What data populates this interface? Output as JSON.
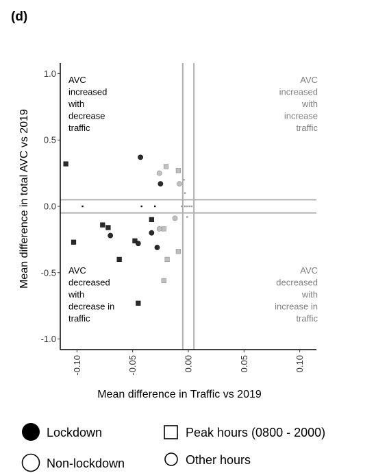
{
  "panel_label": "(d)",
  "legend": {
    "lockdown": "Lockdown",
    "non_lockdown": "Non-lockdown",
    "peak_hours": "Peak hours (0800 - 2000)",
    "other_hours": "Other hours"
  },
  "quadrants": {
    "top_left": [
      "AVC",
      "increased",
      "with",
      "decrease",
      "traffic"
    ],
    "top_right": [
      "AVC",
      "increased",
      "with",
      "increase",
      "traffic"
    ],
    "bottom_left": [
      "AVC",
      "decreased",
      "with",
      "decrease in",
      "traffic"
    ],
    "bottom_right": [
      "AVC",
      "decreased",
      "with",
      "increase in",
      "traffic"
    ]
  },
  "colors": {
    "lockdown": "#2b2b2b",
    "non_lockdown": "#bfbfbf",
    "reference_lines": "#b0b0b0",
    "dark_text": "#000000",
    "grey_text": "#808080"
  },
  "chart_data": {
    "type": "scatter",
    "xlabel": "Mean difference in Traffic vs 2019",
    "ylabel": "Mean difference in total AVC vs 2019",
    "xlim": [
      -0.115,
      0.115
    ],
    "ylim": [
      -1.08,
      1.08
    ],
    "x_ticks": [
      "-0.10",
      "-0.05",
      "0.00",
      "0.05",
      "0.10"
    ],
    "x_tick_values": [
      -0.1,
      -0.05,
      0.0,
      0.05,
      0.1
    ],
    "y_ticks": [
      "1.0",
      "0.5",
      "0.0",
      "-0.5",
      "-1.0"
    ],
    "y_tick_values": [
      1.0,
      0.5,
      0.0,
      -0.5,
      -1.0
    ],
    "reference_lines": {
      "x": [
        -0.005,
        0.005
      ],
      "y": [
        0.05,
        -0.05
      ]
    },
    "series": [
      {
        "name": "Lockdown",
        "marker": "square",
        "points": [
          [
            -0.11,
            0.32
          ],
          [
            -0.103,
            -0.27
          ],
          [
            -0.077,
            -0.14
          ],
          [
            -0.072,
            -0.16
          ],
          [
            -0.062,
            -0.4
          ],
          [
            -0.048,
            -0.26
          ],
          [
            -0.045,
            -0.73
          ],
          [
            -0.033,
            -0.1
          ]
        ]
      },
      {
        "name": "Lockdown",
        "marker": "circle",
        "points": [
          [
            -0.043,
            0.37
          ],
          [
            -0.025,
            0.17
          ],
          [
            -0.07,
            -0.22
          ],
          [
            -0.045,
            -0.28
          ],
          [
            -0.033,
            -0.2
          ],
          [
            -0.028,
            -0.31
          ]
        ]
      },
      {
        "name": "Lockdown",
        "marker": "dot",
        "points": [
          [
            -0.095,
            0.0
          ],
          [
            -0.042,
            0.0
          ],
          [
            -0.03,
            0.0
          ]
        ]
      },
      {
        "name": "Non-lockdown",
        "marker": "square",
        "points": [
          [
            -0.02,
            0.3
          ],
          [
            -0.009,
            0.27
          ],
          [
            -0.022,
            -0.17
          ],
          [
            -0.009,
            -0.34
          ],
          [
            -0.019,
            -0.4
          ],
          [
            -0.022,
            -0.56
          ]
        ]
      },
      {
        "name": "Non-lockdown",
        "marker": "circle",
        "points": [
          [
            -0.026,
            0.25
          ],
          [
            -0.008,
            0.17
          ],
          [
            -0.012,
            -0.09
          ],
          [
            -0.026,
            -0.17
          ]
        ]
      },
      {
        "name": "Non-lockdown",
        "marker": "dot",
        "points": [
          [
            -0.004,
            0.2
          ],
          [
            -0.003,
            0.1
          ],
          [
            -0.006,
            0.0
          ],
          [
            -0.003,
            0.0
          ],
          [
            -0.001,
            0.0
          ],
          [
            0.001,
            0.0
          ],
          [
            0.003,
            0.0
          ],
          [
            -0.001,
            -0.08
          ]
        ]
      }
    ]
  }
}
